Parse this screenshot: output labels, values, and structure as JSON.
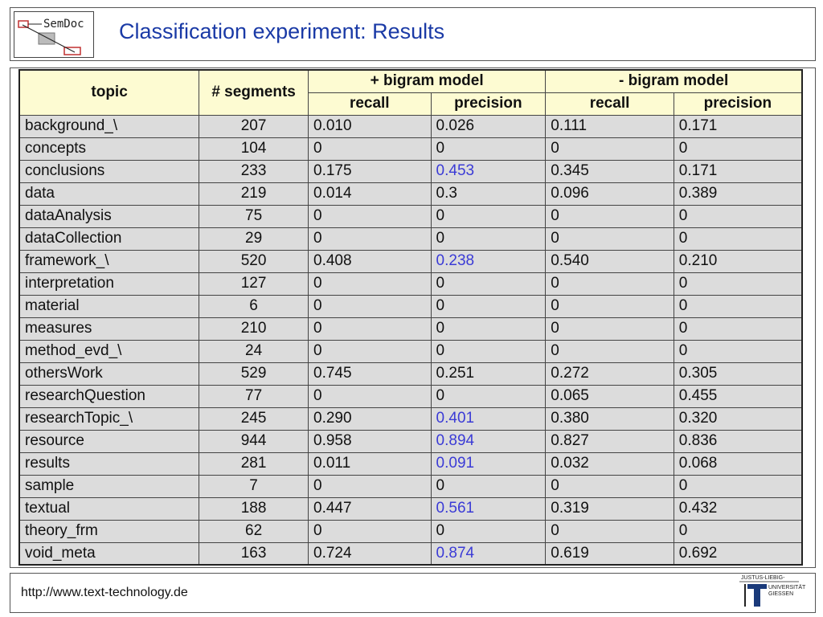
{
  "logo": {
    "text": "SemDoc"
  },
  "title": "Classification experiment: Results",
  "table": {
    "headers": {
      "topic": "topic",
      "segments": "# segments",
      "with_bigram": "+ bigram model",
      "without_bigram": "- bigram model",
      "recall": "recall",
      "precision": "precision"
    },
    "rows": [
      {
        "topic": "background_\\",
        "segments": "207",
        "p_recall": "0.010",
        "p_precision": "0.026",
        "m_recall": "0.111",
        "m_precision": "0.171",
        "highlight": false
      },
      {
        "topic": "concepts",
        "segments": "104",
        "p_recall": "0",
        "p_precision": "0",
        "m_recall": "0",
        "m_precision": "0",
        "highlight": false
      },
      {
        "topic": "conclusions",
        "segments": "233",
        "p_recall": "0.175",
        "p_precision": "0.453",
        "m_recall": "0.345",
        "m_precision": "0.171",
        "highlight": true
      },
      {
        "topic": "data",
        "segments": "219",
        "p_recall": "0.014",
        "p_precision": "0.3",
        "m_recall": "0.096",
        "m_precision": "0.389",
        "highlight": false
      },
      {
        "topic": "dataAnalysis",
        "segments": "75",
        "p_recall": "0",
        "p_precision": "0",
        "m_recall": "0",
        "m_precision": "0",
        "highlight": false
      },
      {
        "topic": "dataCollection",
        "segments": "29",
        "p_recall": "0",
        "p_precision": "0",
        "m_recall": "0",
        "m_precision": "0",
        "highlight": false
      },
      {
        "topic": "framework_\\",
        "segments": "520",
        "p_recall": "0.408",
        "p_precision": "0.238",
        "m_recall": "0.540",
        "m_precision": "0.210",
        "highlight": true
      },
      {
        "topic": "interpretation",
        "segments": "127",
        "p_recall": "0",
        "p_precision": "0",
        "m_recall": "0",
        "m_precision": "0",
        "highlight": false
      },
      {
        "topic": "material",
        "segments": "6",
        "p_recall": "0",
        "p_precision": "0",
        "m_recall": "0",
        "m_precision": "0",
        "highlight": false
      },
      {
        "topic": "measures",
        "segments": "210",
        "p_recall": "0",
        "p_precision": "0",
        "m_recall": "0",
        "m_precision": "0",
        "highlight": false
      },
      {
        "topic": "method_evd_\\",
        "segments": "24",
        "p_recall": "0",
        "p_precision": "0",
        "m_recall": "0",
        "m_precision": "0",
        "highlight": false
      },
      {
        "topic": "othersWork",
        "segments": "529",
        "p_recall": "0.745",
        "p_precision": "0.251",
        "m_recall": "0.272",
        "m_precision": "0.305",
        "highlight": false
      },
      {
        "topic": "researchQuestion",
        "segments": "77",
        "p_recall": "0",
        "p_precision": "0",
        "m_recall": "0.065",
        "m_precision": "0.455",
        "highlight": false
      },
      {
        "topic": "researchTopic_\\",
        "segments": "245",
        "p_recall": "0.290",
        "p_precision": "0.401",
        "m_recall": "0.380",
        "m_precision": "0.320",
        "highlight": true
      },
      {
        "topic": "resource",
        "segments": "944",
        "p_recall": "0.958",
        "p_precision": "0.894",
        "m_recall": "0.827",
        "m_precision": "0.836",
        "highlight": true
      },
      {
        "topic": "results",
        "segments": "281",
        "p_recall": "0.011",
        "p_precision": "0.091",
        "m_recall": "0.032",
        "m_precision": "0.068",
        "highlight": true
      },
      {
        "topic": "sample",
        "segments": "7",
        "p_recall": "0",
        "p_precision": "0",
        "m_recall": "0",
        "m_precision": "0",
        "highlight": false
      },
      {
        "topic": "textual",
        "segments": "188",
        "p_recall": "0.447",
        "p_precision": "0.561",
        "m_recall": "0.319",
        "m_precision": "0.432",
        "highlight": true
      },
      {
        "topic": "theory_frm",
        "segments": "62",
        "p_recall": "0",
        "p_precision": "0",
        "m_recall": "0",
        "m_precision": "0",
        "highlight": false
      },
      {
        "topic": "void_meta",
        "segments": "163",
        "p_recall": "0.724",
        "p_precision": "0.874",
        "m_recall": "0.619",
        "m_precision": "0.692",
        "highlight": true
      }
    ]
  },
  "footer": {
    "url": "http://www.text-technology.de",
    "university_logo": [
      "JUSTUS-LIEBIG-",
      "UNIVERSITÄT",
      "GIESSEN"
    ]
  },
  "colors": {
    "title": "#1a3aa6",
    "header_fill": "#fdfbd2",
    "cell_fill": "#dcdcdc",
    "highlight_text": "#3b3bd6"
  }
}
